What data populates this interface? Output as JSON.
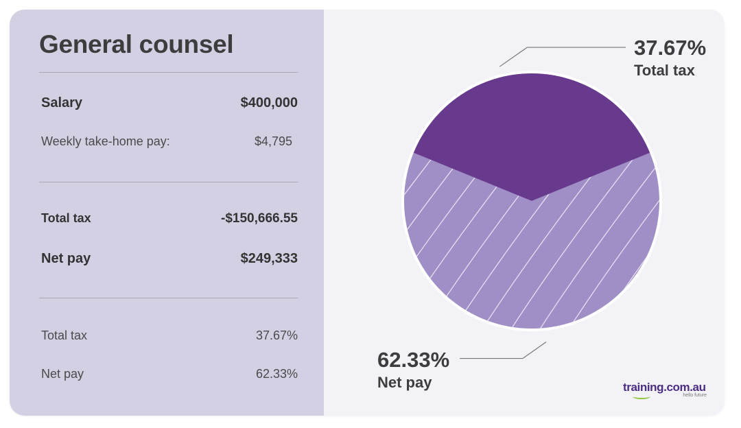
{
  "card": {
    "title": "General counsel",
    "salary_label": "Salary",
    "salary_value": "$400,000",
    "weekly_label": "Weekly take-home pay:",
    "weekly_value": "$4,795",
    "total_tax_label": "Total tax",
    "total_tax_value": "-$150,666.55",
    "net_pay_label": "Net pay",
    "net_pay_value": "$249,333",
    "tax_pct_label": "Total tax",
    "tax_pct_value": "37.67%",
    "net_pct_label": "Net pay",
    "net_pct_value": "62.33%"
  },
  "chart_data": {
    "type": "pie",
    "slices": [
      {
        "label": "Total tax",
        "value": 37.67,
        "display": "37.67%",
        "color": "#673a8e"
      },
      {
        "label": "Net pay",
        "value": 62.33,
        "display": "62.33%",
        "color": "#a08fc6"
      }
    ]
  },
  "colors": {
    "left_panel": "#d4d0e4",
    "right_panel": "#f3f2f6",
    "tax_slice": "#673a8e",
    "net_slice": "#a08fc6"
  },
  "logo": {
    "text": "training.com.au",
    "tagline": "hello future"
  }
}
